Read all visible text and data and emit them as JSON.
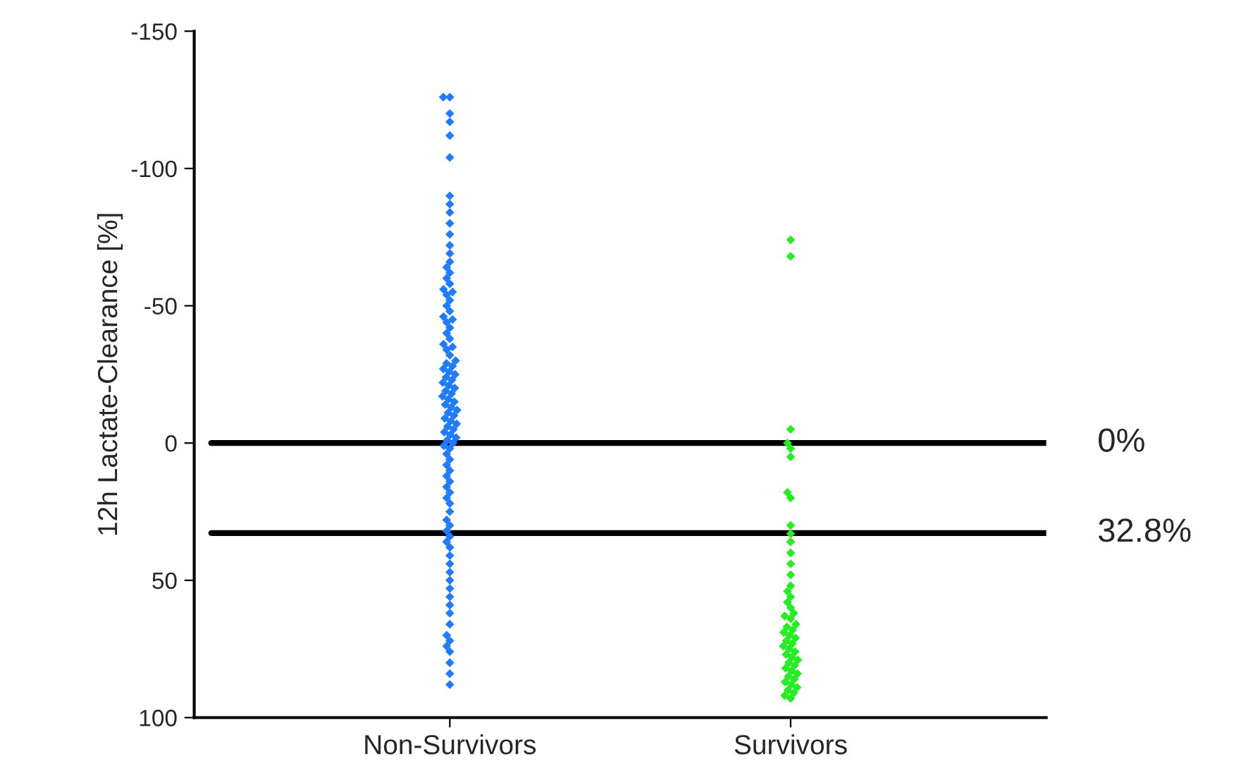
{
  "chart_data": {
    "type": "scatter",
    "ylabel": "12h Lactate-Clearance [%]",
    "categories": [
      "Non-Survivors",
      "Survivors"
    ],
    "series": [
      {
        "color": "#1f7cff",
        "x": [
          "Non-Survivors",
          "Non-Survivors",
          "Non-Survivors",
          "Non-Survivors",
          "Non-Survivors",
          "Non-Survivors",
          "Non-Survivors",
          "Non-Survivors",
          "Non-Survivors",
          "Non-Survivors",
          "Non-Survivors",
          "Non-Survivors",
          "Non-Survivors",
          "Non-Survivors",
          "Non-Survivors",
          "Non-Survivors",
          "Non-Survivors",
          "Non-Survivors",
          "Non-Survivors",
          "Non-Survivors",
          "Non-Survivors",
          "Non-Survivors",
          "Non-Survivors",
          "Non-Survivors",
          "Non-Survivors",
          "Non-Survivors",
          "Non-Survivors",
          "Non-Survivors",
          "Non-Survivors",
          "Non-Survivors",
          "Non-Survivors",
          "Non-Survivors",
          "Non-Survivors",
          "Non-Survivors",
          "Non-Survivors",
          "Non-Survivors",
          "Non-Survivors",
          "Non-Survivors",
          "Non-Survivors",
          "Non-Survivors",
          "Non-Survivors",
          "Non-Survivors",
          "Non-Survivors",
          "Non-Survivors",
          "Non-Survivors",
          "Non-Survivors",
          "Non-Survivors",
          "Non-Survivors",
          "Non-Survivors",
          "Non-Survivors",
          "Non-Survivors",
          "Non-Survivors",
          "Non-Survivors",
          "Non-Survivors",
          "Non-Survivors",
          "Non-Survivors",
          "Non-Survivors",
          "Non-Survivors",
          "Non-Survivors",
          "Non-Survivors",
          "Non-Survivors",
          "Non-Survivors",
          "Non-Survivors",
          "Non-Survivors",
          "Non-Survivors",
          "Non-Survivors",
          "Non-Survivors",
          "Non-Survivors",
          "Non-Survivors",
          "Non-Survivors",
          "Non-Survivors",
          "Non-Survivors",
          "Non-Survivors",
          "Non-Survivors",
          "Non-Survivors",
          "Non-Survivors",
          "Non-Survivors",
          "Non-Survivors",
          "Non-Survivors",
          "Non-Survivors",
          "Non-Survivors",
          "Non-Survivors",
          "Non-Survivors",
          "Non-Survivors",
          "Non-Survivors",
          "Non-Survivors",
          "Non-Survivors",
          "Non-Survivors",
          "Non-Survivors",
          "Non-Survivors",
          "Non-Survivors",
          "Non-Survivors",
          "Non-Survivors",
          "Non-Survivors",
          "Non-Survivors",
          "Non-Survivors",
          "Non-Survivors",
          "Non-Survivors",
          "Non-Survivors",
          "Non-Survivors"
        ],
        "values": [
          -126,
          -126,
          -120,
          -117,
          -112,
          -104,
          -90,
          -87,
          -84,
          -80,
          -76,
          -72,
          -69,
          -66,
          -64,
          -62,
          -60,
          -58,
          -56,
          -55,
          -54,
          -52,
          -50,
          -48,
          -46,
          -45,
          -44,
          -42,
          -40,
          -38,
          -36,
          -35,
          -34,
          -32,
          -30,
          -29,
          -28,
          -27,
          -26,
          -25,
          -24,
          -23,
          -22,
          -21,
          -20,
          -19,
          -18,
          -17,
          -16,
          -15,
          -14,
          -13,
          -12,
          -11,
          -10,
          -9,
          -8,
          -7,
          -6,
          -5,
          -4,
          -3,
          -2,
          -1,
          0,
          1,
          2,
          4,
          6,
          8,
          10,
          12,
          14,
          16,
          18,
          20,
          22,
          25,
          28,
          30,
          32,
          34,
          36,
          38,
          41,
          44,
          47,
          50,
          53,
          56,
          59,
          62,
          66,
          70,
          72,
          74,
          76,
          80,
          84,
          88
        ]
      },
      {
        "color": "#22ee22",
        "x": [
          "Survivors",
          "Survivors",
          "Survivors",
          "Survivors",
          "Survivors",
          "Survivors",
          "Survivors",
          "Survivors",
          "Survivors",
          "Survivors",
          "Survivors",
          "Survivors",
          "Survivors",
          "Survivors",
          "Survivors",
          "Survivors",
          "Survivors",
          "Survivors",
          "Survivors",
          "Survivors",
          "Survivors",
          "Survivors",
          "Survivors",
          "Survivors",
          "Survivors",
          "Survivors",
          "Survivors",
          "Survivors",
          "Survivors",
          "Survivors",
          "Survivors",
          "Survivors",
          "Survivors",
          "Survivors",
          "Survivors",
          "Survivors",
          "Survivors",
          "Survivors",
          "Survivors",
          "Survivors",
          "Survivors",
          "Survivors",
          "Survivors",
          "Survivors",
          "Survivors",
          "Survivors",
          "Survivors",
          "Survivors",
          "Survivors",
          "Survivors"
        ],
        "values": [
          -74,
          -68,
          -5,
          0,
          2,
          5,
          18,
          20,
          30,
          33,
          36,
          40,
          44,
          48,
          52,
          54,
          56,
          58,
          60,
          62,
          63,
          64,
          66,
          67,
          68,
          69,
          70,
          71,
          72,
          73,
          74,
          75,
          76,
          77,
          78,
          79,
          80,
          81,
          82,
          83,
          84,
          85,
          86,
          87,
          88,
          89,
          90,
          91,
          92,
          93
        ]
      }
    ],
    "ylim": [
      100,
      -150
    ],
    "yticks": [
      -150,
      -100,
      -50,
      0,
      50,
      100
    ],
    "ref_lines": [
      {
        "axis": "y",
        "value": 0,
        "label": "0%",
        "color": "#000000"
      },
      {
        "axis": "y",
        "value": 32.8,
        "label": "32.8%",
        "color": "#000000"
      }
    ],
    "marker": "diamond"
  }
}
